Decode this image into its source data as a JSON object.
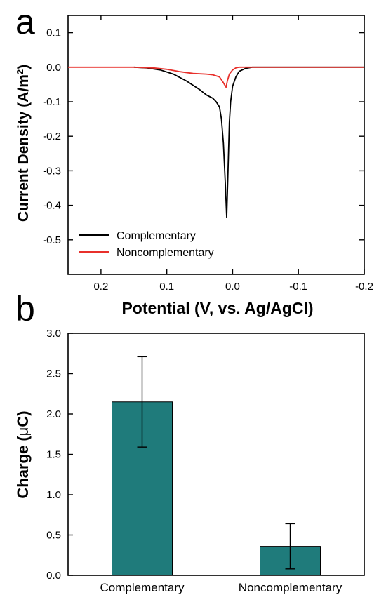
{
  "chart_data": [
    {
      "panel": "a",
      "type": "line",
      "xlabel": "Potential (V, vs. Ag/AgCl)",
      "ylabel": "Current Density (A/m",
      "ylabel_sup": "2",
      "ylabel_end": ")",
      "xlim": [
        0.25,
        -0.2
      ],
      "ylim": [
        -0.6,
        0.15
      ],
      "x_ticks": [
        0.2,
        0.1,
        0.0,
        -0.1,
        -0.2
      ],
      "x_tick_labels": [
        "0.2",
        "0.1",
        "0.0",
        "-0.1",
        "-0.2"
      ],
      "y_ticks": [
        0.1,
        0.0,
        -0.1,
        -0.2,
        -0.3,
        -0.4,
        -0.5
      ],
      "y_tick_labels": [
        "0.1",
        "0.0",
        "-0.1",
        "-0.2",
        "-0.3",
        "-0.4",
        "-0.5"
      ],
      "legend_position": "bottom-left",
      "series": [
        {
          "name": "Complementary",
          "color": "#000000",
          "x": [
            0.15,
            0.13,
            0.11,
            0.09,
            0.07,
            0.05,
            0.04,
            0.03,
            0.025,
            0.02,
            0.017,
            0.014,
            0.011,
            0.009,
            0.007,
            0.005,
            0.003,
            0.0,
            -0.005,
            -0.01,
            -0.02,
            -0.03,
            -0.04,
            -0.06,
            -0.1,
            -0.15,
            -0.2
          ],
          "y": [
            0.0,
            -0.002,
            -0.008,
            -0.02,
            -0.04,
            -0.065,
            -0.08,
            -0.09,
            -0.1,
            -0.115,
            -0.15,
            -0.22,
            -0.34,
            -0.435,
            -0.3,
            -0.16,
            -0.1,
            -0.055,
            -0.028,
            -0.012,
            -0.003,
            0.0,
            0.0,
            0.0,
            0.0,
            0.0,
            0.0
          ]
        },
        {
          "name": "Noncomplementary",
          "color": "#e8302b",
          "x": [
            0.25,
            0.15,
            0.12,
            0.1,
            0.08,
            0.06,
            0.04,
            0.03,
            0.02,
            0.015,
            0.01,
            0.008,
            0.005,
            0.0,
            -0.005,
            -0.01,
            -0.02,
            -0.1,
            -0.2
          ],
          "y": [
            0.0,
            0.0,
            -0.002,
            -0.006,
            -0.013,
            -0.018,
            -0.02,
            -0.022,
            -0.028,
            -0.042,
            -0.058,
            -0.04,
            -0.02,
            -0.008,
            -0.002,
            0.0,
            0.0,
            0.0,
            0.0
          ]
        }
      ]
    },
    {
      "panel": "b",
      "type": "bar",
      "ylabel": "Charge (",
      "ylabel_mu": "μ",
      "ylabel_end": "C)",
      "categories": [
        "Complementary",
        "Noncomplementary"
      ],
      "values": [
        2.15,
        0.36
      ],
      "errors": [
        0.56,
        0.28
      ],
      "ylim": [
        0,
        3.0
      ],
      "y_ticks": [
        0.0,
        0.5,
        1.0,
        1.5,
        2.0,
        2.5,
        3.0
      ],
      "y_tick_labels": [
        "0.0",
        "0.5",
        "1.0",
        "1.5",
        "2.0",
        "2.5",
        "3.0"
      ],
      "bar_color": "#1f7b7b"
    }
  ],
  "panel_letters": {
    "a": "a",
    "b": "b"
  }
}
